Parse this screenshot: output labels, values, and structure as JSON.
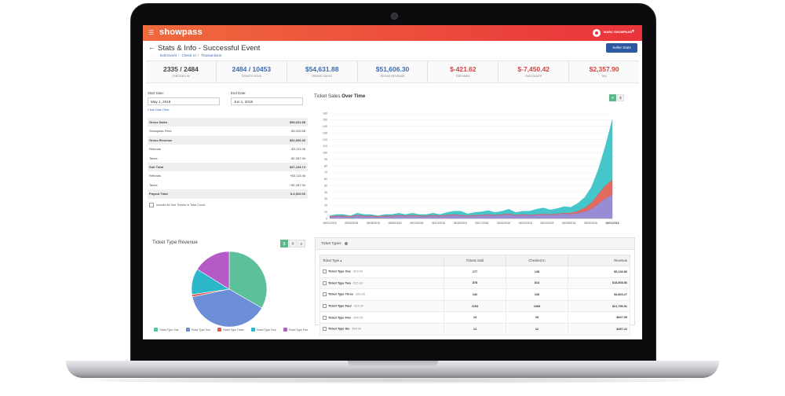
{
  "app": {
    "brand": "showpass",
    "user": "MARC SHOWPASS"
  },
  "header": {
    "title": "Stats & Info - Successful Event",
    "breadcrumbs": [
      "Edit Event",
      "Check In",
      "Transactions"
    ],
    "seller_button": "Seller Stats"
  },
  "stats": [
    {
      "value": "2335 / 2484",
      "label": "CHECKED IN"
    },
    {
      "value": "2484 / 10453",
      "label": "TICKETS SOLD"
    },
    {
      "value": "$54,631.88",
      "label": "GROSS SALES"
    },
    {
      "value": "$51,606.30",
      "label": "GROSS REVENUE"
    },
    {
      "value": "$-421.62",
      "label": "REFUNDS"
    },
    {
      "value": "$-7,450.42",
      "label": "DISCOUNTS"
    },
    {
      "value": "$2,357.90",
      "label": "TAX"
    }
  ],
  "filters": {
    "start_label": "Start Date:",
    "start_value": "May 1, 2018",
    "end_label": "End Date:",
    "end_value": "Jun 1, 2018",
    "clear_link": "Clear Date Filter"
  },
  "summary": [
    {
      "label": "Gross Sales",
      "value": "$54,631.88",
      "bold": true
    },
    {
      "label": "Showpass Fees",
      "value": "-$3,025.58",
      "bold": false
    },
    {
      "label": "Gross Revenue",
      "value": "$51,606.30",
      "bold": true
    },
    {
      "label": "Refunds",
      "value": "-$3,113.46",
      "bold": false
    },
    {
      "label": "Taxes",
      "value": "-$2,357.90",
      "bold": false
    },
    {
      "label": "Sub Total",
      "value": "$47,134.74",
      "bold": true
    },
    {
      "label": "Refunds",
      "value": "+$3,113.46",
      "bold": false
    },
    {
      "label": "Taxes",
      "value": "+$2,357.90",
      "bold": false
    },
    {
      "label": "Payout Total",
      "value": "$-3,926.00",
      "bold": true
    }
  ],
  "include_label": "Include All Sub Tickets in Total Count",
  "line_chart": {
    "title": "Ticket Sales",
    "title_bold": "Over Time",
    "toggle": [
      "#",
      "$"
    ]
  },
  "chart_data": [
    {
      "type": "area",
      "title": "Ticket Sales Over Time",
      "ylim": [
        0,
        160
      ],
      "yticks": [
        0,
        10,
        20,
        30,
        40,
        50,
        60,
        70,
        80,
        90,
        100,
        110,
        120,
        130,
        140,
        150,
        160
      ],
      "ytick_labels": [
        "0",
        "10",
        "20",
        "30",
        "40",
        "50",
        "60",
        "70",
        "80",
        "90",
        "100",
        "110",
        "120",
        "130",
        "140",
        "150",
        "160"
      ],
      "x_labels": [
        "05/01/2018",
        "05/03/2018",
        "05/06/2018",
        "05/08/2018",
        "05/10/2018",
        "05/13/2018",
        "05/15/2018",
        "05/17/2018",
        "05/20/2018",
        "05/22/2018",
        "05/24/2018",
        "05/26/2018",
        "05/29/2018",
        "06/01/2018"
      ],
      "series": [
        {
          "color": "#8d7fd0",
          "values": [
            2,
            3,
            3,
            2,
            4,
            3,
            3,
            2,
            3,
            3,
            4,
            3,
            4,
            3,
            3,
            4,
            3,
            4,
            5,
            4,
            3,
            4,
            4,
            5,
            4,
            5,
            6,
            4,
            5,
            4,
            5,
            6,
            5,
            6,
            7,
            6,
            8,
            10,
            14,
            22,
            30,
            36
          ]
        },
        {
          "color": "#e05a4e",
          "values": [
            1,
            1,
            1,
            1,
            1,
            1,
            1,
            1,
            1,
            1,
            1,
            1,
            1,
            1,
            1,
            1,
            1,
            1,
            1,
            1,
            1,
            1,
            1,
            1,
            1,
            1,
            1,
            1,
            1,
            1,
            1,
            1,
            1,
            1,
            1,
            2,
            3,
            6,
            10,
            15,
            20,
            22
          ]
        },
        {
          "color": "#30c0c4",
          "values": [
            1,
            2,
            2,
            1,
            3,
            2,
            2,
            1,
            2,
            2,
            3,
            2,
            3,
            2,
            2,
            3,
            2,
            4,
            5,
            6,
            3,
            4,
            5,
            6,
            4,
            5,
            7,
            4,
            5,
            6,
            8,
            9,
            7,
            8,
            10,
            9,
            12,
            16,
            24,
            38,
            60,
            92
          ]
        }
      ]
    },
    {
      "type": "pie",
      "title": "Ticket Type Revenue",
      "labels": [
        "Ticket Type One",
        "Ticket Type Two",
        "Ticket Type Three",
        "Ticket Type Four",
        "Ticket Type Five"
      ],
      "values": [
        33,
        38,
        1,
        11,
        16
      ],
      "colors": [
        "#5cc09a",
        "#6b8ed6",
        "#e05a4e",
        "#2ab8c8",
        "#b65ac7"
      ]
    }
  ],
  "pie_toggles": [
    "$",
    "#",
    "≡"
  ],
  "ticket_types": {
    "title": "Ticket Types",
    "columns": [
      "Ticket Type ▴",
      "Tickets Sold",
      "Checked In",
      "Revenue"
    ],
    "rows": [
      {
        "name": "Ticket Type One",
        "price": "- $29.99",
        "sold": "177",
        "checked": "148",
        "revenue": "$5,146.80"
      },
      {
        "name": "Ticket Type Two",
        "price": "- $15.99",
        "sold": "878",
        "checked": "814",
        "revenue": "$18,808.56"
      },
      {
        "name": "Ticket Type Three",
        "price": "- $39.95",
        "sold": "242",
        "checked": "228",
        "revenue": "$4,803.27"
      },
      {
        "name": "Ticket Type Four",
        "price": "- $15.99",
        "sold": "1154",
        "checked": "1083",
        "revenue": "$21,756.91"
      },
      {
        "name": "Ticket Type Five",
        "price": "- $49.95",
        "sold": "19",
        "checked": "18",
        "revenue": "$847.05"
      },
      {
        "name": "Ticket Type Six",
        "price": "- $54.99",
        "sold": "14",
        "checked": "12",
        "revenue": "$457.22"
      }
    ]
  }
}
